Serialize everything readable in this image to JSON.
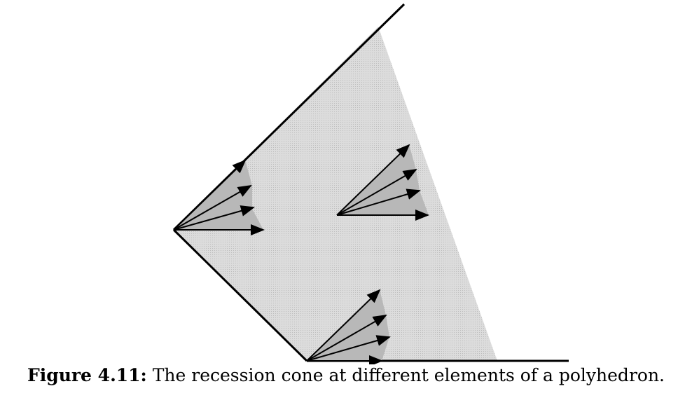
{
  "figure": {
    "description_label": "Figure 4.11:",
    "caption_text": "The recession cone at different elements of a polyhedron.",
    "colors": {
      "region_fill": "#d7d7d7",
      "cone_fill": "#b8b8b8",
      "edge": "#000000",
      "arrow": "#000000"
    },
    "cone_points": [
      {
        "name": "left-vertex",
        "arrow_count": 4
      },
      {
        "name": "interior-point",
        "arrow_count": 4
      },
      {
        "name": "bottom-vertex",
        "arrow_count": 4
      }
    ]
  }
}
